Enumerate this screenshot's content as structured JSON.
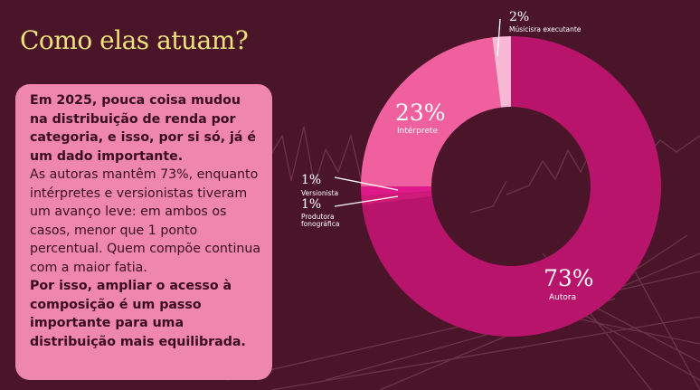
{
  "heading": "Como elas atuam?",
  "body": {
    "p1": "Em 2025, pouca coisa mudou na distribuição de renda por categoria, e isso, por si só, já é um dado importante.",
    "p2": "As autoras mantêm 73%, enquanto intérpretes e versionistas tiveram um avanço leve: em ambos os casos, menor que 1 ponto percentual. Quem compõe continua com a maior fatia.",
    "p3": "Por isso, ampliar o acesso à composição é um passo importante para uma distribuição mais equilibrada."
  },
  "colors": {
    "background": "#4a1529",
    "title": "#eee27a",
    "textbox": "#ef86ad"
  },
  "chart_data": {
    "type": "pie",
    "variant": "donut",
    "start": "top, clockwise",
    "slices": [
      {
        "label": "Autora",
        "value": 73,
        "display": "73%",
        "color": "#b8146b"
      },
      {
        "label": "Produtora fonográfica",
        "value": 1,
        "display": "1%",
        "color": "#cf1a7a"
      },
      {
        "label": "Versionista",
        "value": 1,
        "display": "1%",
        "color": "#e0198a"
      },
      {
        "label": "Intérprete",
        "value": 23,
        "display": "23%",
        "color": "#f0609e"
      },
      {
        "label": "Músicisra executante",
        "value": 2,
        "display": "2%",
        "color": "#f9b8d4"
      }
    ]
  }
}
